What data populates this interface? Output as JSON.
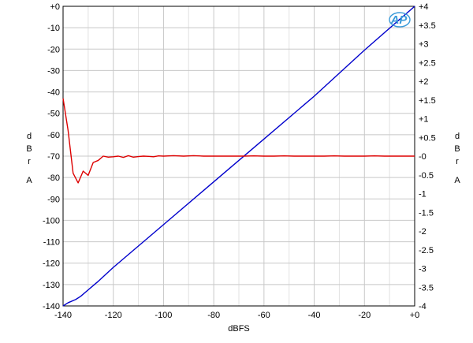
{
  "chart_data": {
    "type": "line",
    "title": "",
    "xlabel": "dBFS",
    "ylabel_left": [
      "d",
      "B",
      "r",
      "A"
    ],
    "ylabel_right": [
      "d",
      "B",
      "r",
      "A"
    ],
    "xlim": [
      -140,
      0
    ],
    "ylim_left": [
      -140,
      0
    ],
    "ylim_right": [
      -4,
      4
    ],
    "grid": true,
    "x_ticks": [
      -140,
      -120,
      -100,
      -80,
      -60,
      -40,
      -20,
      0
    ],
    "x_tick_labels": [
      "-140",
      "-120",
      "-100",
      "-80",
      "-60",
      "-40",
      "-20",
      "+0"
    ],
    "y_left_ticks": [
      0,
      -10,
      -20,
      -30,
      -40,
      -50,
      -60,
      -70,
      -80,
      -90,
      -100,
      -110,
      -120,
      -130,
      -140
    ],
    "y_left_tick_labels": [
      "+0",
      "-10",
      "-20",
      "-30",
      "-40",
      "-50",
      "-60",
      "-70",
      "-80",
      "-90",
      "-100",
      "-110",
      "-120",
      "-130",
      "-140"
    ],
    "y_right_ticks": [
      4,
      3.5,
      3,
      2.5,
      2,
      1.5,
      1,
      0.5,
      0,
      -0.5,
      -1,
      -1.5,
      -2,
      -2.5,
      -3,
      -3.5,
      -4
    ],
    "y_right_tick_labels": [
      "+4",
      "+3.5",
      "+3",
      "+2.5",
      "+2",
      "+1.5",
      "+1",
      "+0.5",
      "-0",
      "-0.5",
      "-1",
      "-1.5",
      "-2",
      "-2.5",
      "-3",
      "-3.5",
      "-4"
    ],
    "series": [
      {
        "color": "#0000cc",
        "axis": "left",
        "x": [
          -140,
          -138,
          -135,
          -133,
          -130,
          -128,
          -126,
          -120,
          -100,
          -80,
          -60,
          -40,
          -20,
          0
        ],
        "y": [
          -140,
          -138.5,
          -137,
          -135.5,
          -132.5,
          -130.5,
          -128.5,
          -122,
          -102,
          -82,
          -62,
          -42,
          -20.5,
          0
        ]
      },
      {
        "color": "#dd0000",
        "axis": "left",
        "x": [
          -140,
          -138,
          -136,
          -134,
          -132,
          -130,
          -128,
          -126,
          -124,
          -122,
          -120,
          -118,
          -116,
          -114,
          -112,
          -110,
          -108,
          -106,
          -104,
          -102,
          -100,
          -96,
          -92,
          -88,
          -84,
          -80,
          -76,
          -72,
          -68,
          -64,
          -60,
          -56,
          -52,
          -48,
          -44,
          -40,
          -36,
          -32,
          -28,
          -24,
          -20,
          -16,
          -12,
          -8,
          -4,
          0
        ],
        "y": [
          -43,
          -58,
          -78,
          -82.5,
          -77,
          -79,
          -73,
          -72,
          -70,
          -70.5,
          -70.3,
          -70,
          -70.6,
          -69.8,
          -70.5,
          -70.2,
          -70,
          -70.1,
          -70.3,
          -69.9,
          -70,
          -69.8,
          -70,
          -69.8,
          -70,
          -70,
          -70,
          -70,
          -70,
          -69.9,
          -70,
          -70,
          -69.9,
          -70,
          -70,
          -70,
          -70,
          -69.9,
          -70,
          -70,
          -70,
          -69.9,
          -70,
          -70,
          -70,
          -70
        ]
      }
    ]
  },
  "logo": {
    "text": "AP"
  },
  "colors": {
    "grid": "#c8c8c8",
    "frame": "#000000",
    "logo": "#3a9ad9"
  }
}
